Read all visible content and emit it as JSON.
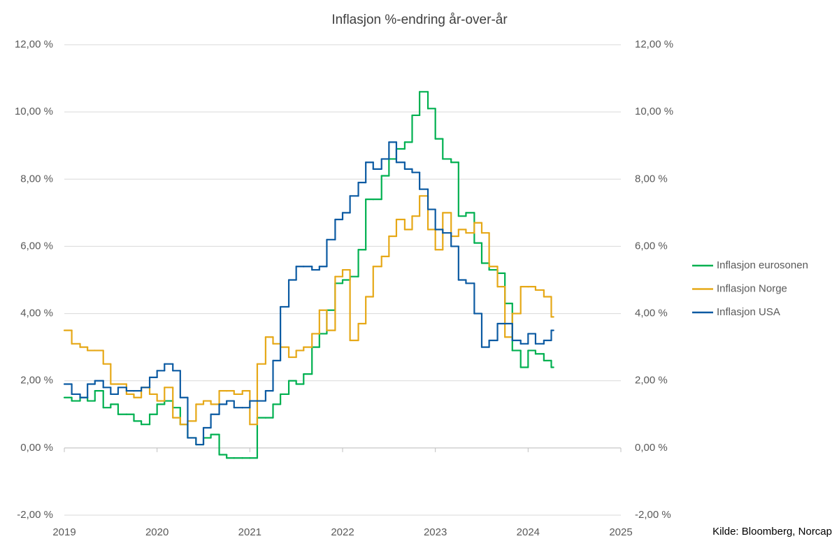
{
  "chart_data": {
    "type": "step-line",
    "title": "Inflasjon %-endring år-over-år",
    "x": [
      2019,
      2019.08,
      2019.17,
      2019.25,
      2019.33,
      2019.42,
      2019.5,
      2019.58,
      2019.67,
      2019.75,
      2019.83,
      2019.92,
      2020,
      2020.08,
      2020.17,
      2020.25,
      2020.33,
      2020.42,
      2020.5,
      2020.58,
      2020.67,
      2020.75,
      2020.83,
      2020.92,
      2021,
      2021.08,
      2021.17,
      2021.25,
      2021.33,
      2021.42,
      2021.5,
      2021.58,
      2021.67,
      2021.75,
      2021.83,
      2021.92,
      2022,
      2022.08,
      2022.17,
      2022.25,
      2022.33,
      2022.42,
      2022.5,
      2022.58,
      2022.67,
      2022.75,
      2022.83,
      2022.92,
      2023,
      2023.08,
      2023.17,
      2023.25,
      2023.33,
      2023.42,
      2023.5,
      2023.58,
      2023.67,
      2023.75,
      2023.83,
      2023.92,
      2024,
      2024.08,
      2024.17,
      2024.25
    ],
    "series": [
      {
        "name": "Inflasjon eurosonen",
        "color": "#00b050",
        "values": [
          1.5,
          1.4,
          1.5,
          1.4,
          1.7,
          1.2,
          1.3,
          1.0,
          1.0,
          0.8,
          0.7,
          1.0,
          1.3,
          1.4,
          1.2,
          0.7,
          0.3,
          0.1,
          0.3,
          0.4,
          -0.2,
          -0.3,
          -0.3,
          -0.3,
          -0.3,
          0.9,
          0.9,
          1.3,
          1.6,
          2.0,
          1.9,
          2.2,
          3.0,
          3.4,
          4.1,
          4.9,
          5.0,
          5.1,
          5.9,
          7.4,
          7.4,
          8.1,
          8.6,
          8.9,
          9.1,
          9.9,
          10.6,
          10.1,
          9.2,
          8.6,
          8.5,
          6.9,
          7.0,
          6.1,
          5.5,
          5.3,
          5.2,
          4.3,
          2.9,
          2.4,
          2.9,
          2.8,
          2.6,
          2.4
        ]
      },
      {
        "name": "Inflasjon Norge",
        "color": "#e6a817",
        "values": [
          3.5,
          3.1,
          3.0,
          2.9,
          2.9,
          2.5,
          1.9,
          1.9,
          1.6,
          1.5,
          1.8,
          1.6,
          1.4,
          1.8,
          0.9,
          0.7,
          0.8,
          1.3,
          1.4,
          1.3,
          1.7,
          1.7,
          1.6,
          1.7,
          0.7,
          2.5,
          3.3,
          3.1,
          3.0,
          2.7,
          2.9,
          3.0,
          3.4,
          4.1,
          3.5,
          5.1,
          5.3,
          3.2,
          3.7,
          4.5,
          5.4,
          5.7,
          6.3,
          6.8,
          6.5,
          6.9,
          7.5,
          6.5,
          5.9,
          7.0,
          6.3,
          6.5,
          6.4,
          6.7,
          6.4,
          5.4,
          4.8,
          3.3,
          4.0,
          4.8,
          4.8,
          4.7,
          4.5,
          3.9
        ]
      },
      {
        "name": "Inflasjon USA",
        "color": "#0b5aa2",
        "values": [
          1.9,
          1.6,
          1.5,
          1.9,
          2.0,
          1.8,
          1.6,
          1.8,
          1.7,
          1.7,
          1.8,
          2.1,
          2.3,
          2.5,
          2.3,
          1.5,
          0.3,
          0.1,
          0.6,
          1.0,
          1.3,
          1.4,
          1.2,
          1.2,
          1.4,
          1.4,
          1.7,
          2.6,
          4.2,
          5.0,
          5.4,
          5.4,
          5.3,
          5.4,
          6.2,
          6.8,
          7.0,
          7.5,
          7.9,
          8.5,
          8.3,
          8.6,
          9.1,
          8.5,
          8.3,
          8.2,
          7.7,
          7.1,
          6.5,
          6.4,
          6.0,
          5.0,
          4.9,
          4.0,
          3.0,
          3.2,
          3.7,
          3.7,
          3.2,
          3.1,
          3.4,
          3.1,
          3.2,
          3.5
        ]
      }
    ],
    "xlim": [
      2019,
      2025
    ],
    "xticks": [
      2019,
      2020,
      2021,
      2022,
      2023,
      2024,
      2025
    ],
    "ylim": [
      -2,
      12
    ],
    "yticks": [
      {
        "value": -2,
        "label": "-2,00 %"
      },
      {
        "value": 0,
        "label": "0,00 %"
      },
      {
        "value": 2,
        "label": "2,00 %"
      },
      {
        "value": 4,
        "label": "4,00 %"
      },
      {
        "value": 6,
        "label": "6,00 %"
      },
      {
        "value": 8,
        "label": "8,00 %"
      },
      {
        "value": 10,
        "label": "10,00 %"
      },
      {
        "value": 12,
        "label": "12,00 %"
      }
    ],
    "y2lim": [
      -2,
      12
    ],
    "y2ticks": [
      {
        "value": -2,
        "label": "-2,00 %"
      },
      {
        "value": 0,
        "label": "0,00 %"
      },
      {
        "value": 2,
        "label": "2,00 %"
      },
      {
        "value": 4,
        "label": "4,00 %"
      },
      {
        "value": 6,
        "label": "6,00 %"
      },
      {
        "value": 8,
        "label": "8,00 %"
      },
      {
        "value": 10,
        "label": "10,00 %"
      },
      {
        "value": 12,
        "label": "12,00 %"
      }
    ],
    "grid": true,
    "legend": "right",
    "source": "Kilde: Bloomberg, Norcap"
  }
}
